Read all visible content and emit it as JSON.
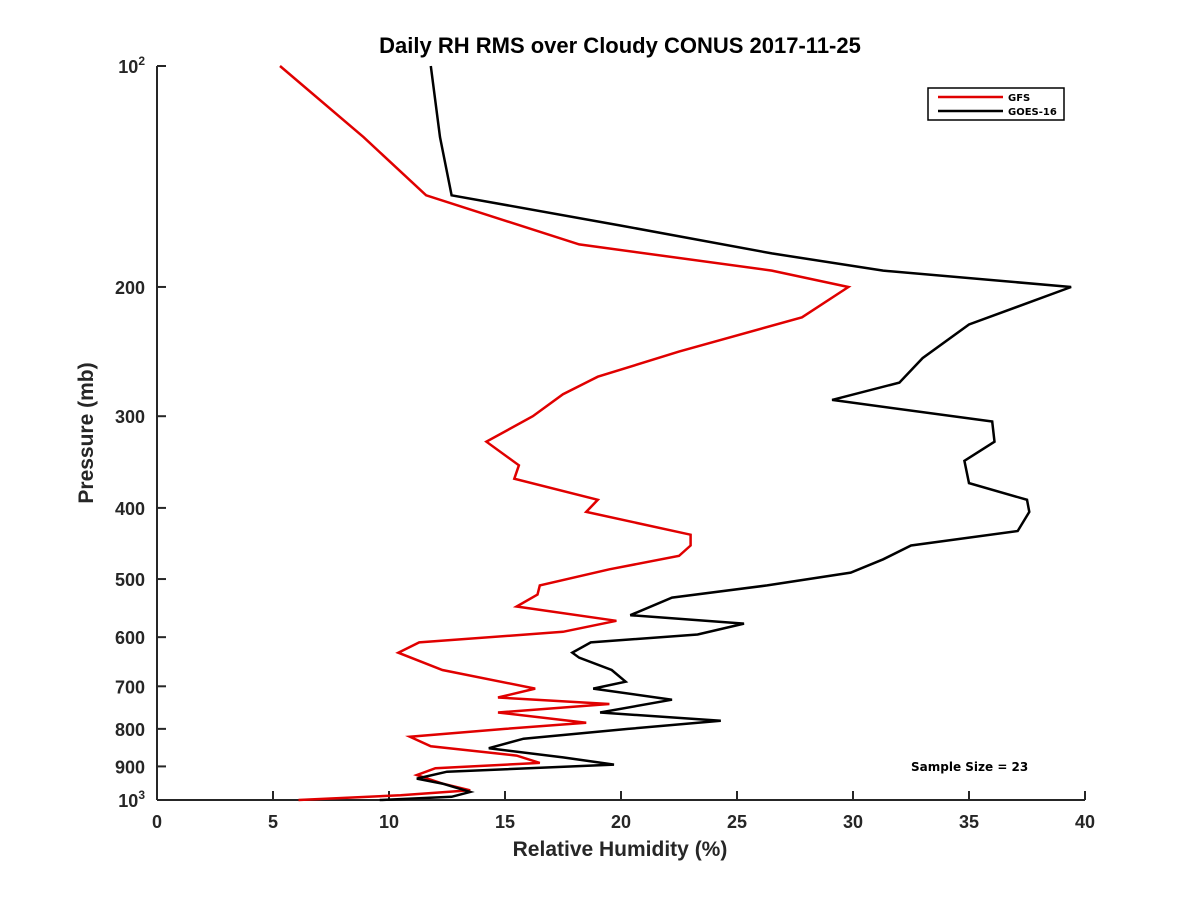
{
  "chart_data": {
    "type": "line",
    "title": "Daily RH RMS over Cloudy CONUS 2017-11-25",
    "xlabel": "Relative Humidity (%)",
    "ylabel": "Pressure (mb)",
    "xlim": [
      0,
      40
    ],
    "ylim": [
      100,
      1000
    ],
    "y_scale": "log",
    "y_reversed": true,
    "grid": false,
    "legend_position": "top-right",
    "annotation": "Sample Size = 23",
    "x_ticks": [
      {
        "value": 0,
        "label": "0"
      },
      {
        "value": 5,
        "label": "5"
      },
      {
        "value": 10,
        "label": "10"
      },
      {
        "value": 15,
        "label": "15"
      },
      {
        "value": 20,
        "label": "20"
      },
      {
        "value": 25,
        "label": "25"
      },
      {
        "value": 30,
        "label": "30"
      },
      {
        "value": 35,
        "label": "35"
      },
      {
        "value": 40,
        "label": "40"
      }
    ],
    "y_ticks": [
      {
        "value": 100,
        "label": "10",
        "sup": "2"
      },
      {
        "value": 200,
        "label": "200",
        "sup": ""
      },
      {
        "value": 300,
        "label": "300",
        "sup": ""
      },
      {
        "value": 400,
        "label": "400",
        "sup": ""
      },
      {
        "value": 500,
        "label": "500",
        "sup": ""
      },
      {
        "value": 600,
        "label": "600",
        "sup": ""
      },
      {
        "value": 700,
        "label": "700",
        "sup": ""
      },
      {
        "value": 800,
        "label": "800",
        "sup": ""
      },
      {
        "value": 900,
        "label": "900",
        "sup": ""
      },
      {
        "value": 1000,
        "label": "10",
        "sup": "3"
      }
    ],
    "series": [
      {
        "name": "GFS",
        "color": "#e00000",
        "points": [
          [
            5.3,
            100
          ],
          [
            8.9,
            125
          ],
          [
            11.6,
            150
          ],
          [
            18.2,
            175
          ],
          [
            26.5,
            190
          ],
          [
            29.8,
            200
          ],
          [
            27.8,
            220
          ],
          [
            22.5,
            245
          ],
          [
            19.0,
            265
          ],
          [
            17.5,
            280
          ],
          [
            16.2,
            300
          ],
          [
            14.2,
            325
          ],
          [
            15.6,
            350
          ],
          [
            15.4,
            365
          ],
          [
            19.0,
            390
          ],
          [
            18.5,
            405
          ],
          [
            23.0,
            435
          ],
          [
            23.0,
            450
          ],
          [
            22.5,
            465
          ],
          [
            19.5,
            485
          ],
          [
            16.5,
            510
          ],
          [
            16.4,
            525
          ],
          [
            15.5,
            545
          ],
          [
            19.8,
            570
          ],
          [
            17.5,
            590
          ],
          [
            11.3,
            610
          ],
          [
            10.4,
            630
          ],
          [
            12.3,
            665
          ],
          [
            16.3,
            705
          ],
          [
            14.7,
            725
          ],
          [
            19.5,
            740
          ],
          [
            14.7,
            760
          ],
          [
            18.5,
            785
          ],
          [
            15.0,
            800
          ],
          [
            10.9,
            820
          ],
          [
            11.8,
            845
          ],
          [
            15.5,
            870
          ],
          [
            16.5,
            890
          ],
          [
            12.0,
            905
          ],
          [
            11.2,
            925
          ],
          [
            12.3,
            950
          ],
          [
            13.5,
            970
          ],
          [
            10.5,
            985
          ],
          [
            6.1,
            1000
          ]
        ]
      },
      {
        "name": "GOES-16",
        "color": "#000000",
        "points": [
          [
            11.8,
            100
          ],
          [
            12.2,
            125
          ],
          [
            12.7,
            150
          ],
          [
            20.0,
            165
          ],
          [
            26.5,
            180
          ],
          [
            31.3,
            190
          ],
          [
            39.4,
            200
          ],
          [
            35.0,
            225
          ],
          [
            33.0,
            250
          ],
          [
            32.0,
            270
          ],
          [
            29.1,
            285
          ],
          [
            36.0,
            305
          ],
          [
            36.1,
            325
          ],
          [
            34.8,
            345
          ],
          [
            35.0,
            370
          ],
          [
            37.5,
            390
          ],
          [
            37.6,
            405
          ],
          [
            37.1,
            430
          ],
          [
            32.5,
            450
          ],
          [
            31.3,
            470
          ],
          [
            29.9,
            490
          ],
          [
            26.3,
            510
          ],
          [
            22.2,
            530
          ],
          [
            20.4,
            560
          ],
          [
            25.3,
            575
          ],
          [
            23.3,
            595
          ],
          [
            18.7,
            610
          ],
          [
            17.9,
            630
          ],
          [
            18.2,
            640
          ],
          [
            19.6,
            665
          ],
          [
            20.2,
            690
          ],
          [
            18.8,
            705
          ],
          [
            22.2,
            730
          ],
          [
            19.1,
            760
          ],
          [
            24.3,
            780
          ],
          [
            20.3,
            800
          ],
          [
            15.8,
            825
          ],
          [
            14.3,
            850
          ],
          [
            17.5,
            875
          ],
          [
            19.7,
            895
          ],
          [
            12.5,
            915
          ],
          [
            11.2,
            935
          ],
          [
            12.3,
            950
          ],
          [
            13.5,
            975
          ],
          [
            12.7,
            990
          ],
          [
            9.6,
            1000
          ]
        ]
      }
    ]
  }
}
